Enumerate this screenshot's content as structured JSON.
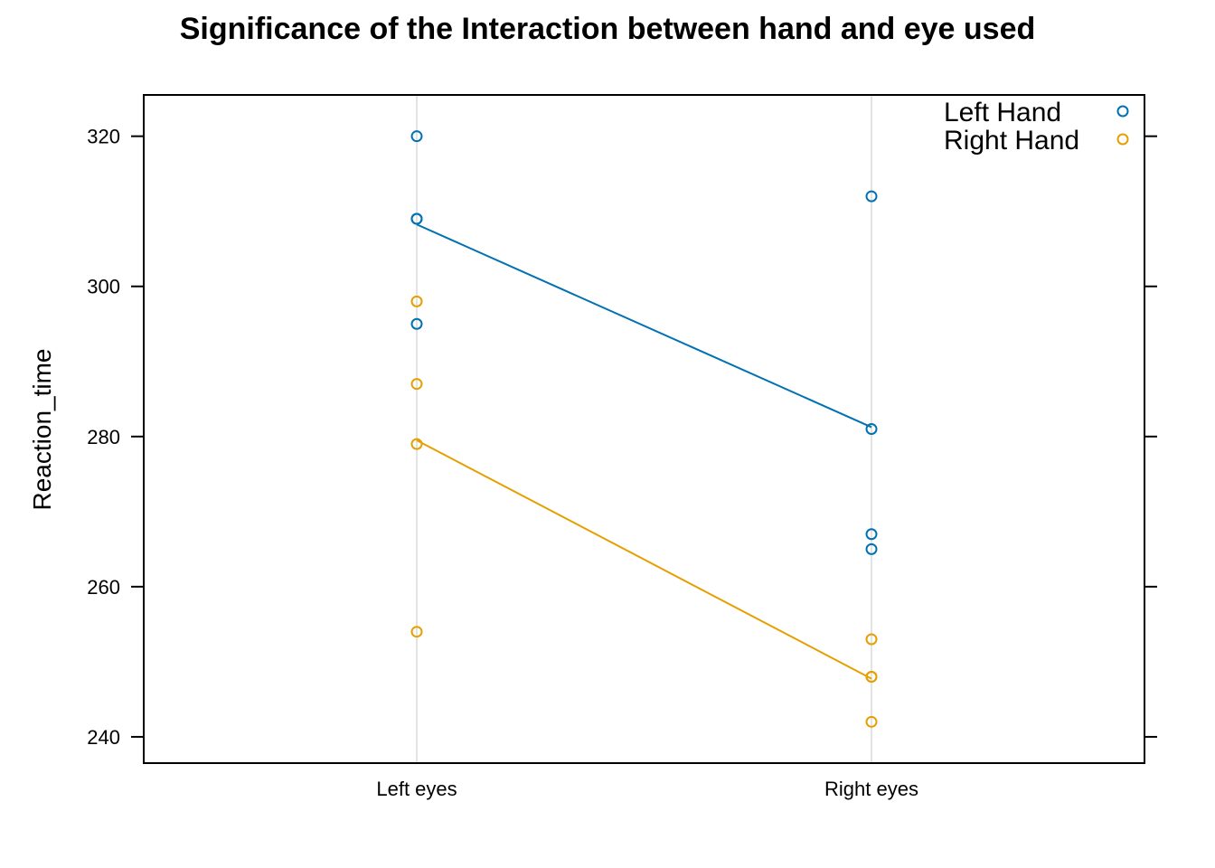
{
  "chart_data": {
    "type": "scatter",
    "title": "Significance of the Interaction between hand and eye used",
    "xlabel": "",
    "ylabel": "Reaction_time",
    "categories": [
      "Left eyes",
      "Right eyes"
    ],
    "ylim": [
      236.5,
      325.5
    ],
    "yticks": [
      240,
      260,
      280,
      300,
      320
    ],
    "grid": "vertical lines at categories",
    "legend_position": "top-right",
    "series": [
      {
        "name": "Left Hand",
        "color": "#0072B2",
        "points": [
          {
            "x": "Left eyes",
            "y": 320
          },
          {
            "x": "Left eyes",
            "y": 309
          },
          {
            "x": "Left eyes",
            "y": 309
          },
          {
            "x": "Left eyes",
            "y": 295
          },
          {
            "x": "Right eyes",
            "y": 312
          },
          {
            "x": "Right eyes",
            "y": 267
          },
          {
            "x": "Right eyes",
            "y": 265
          },
          {
            "x": "Right eyes",
            "y": 281
          }
        ],
        "means": [
          308.25,
          281.25
        ]
      },
      {
        "name": "Right Hand",
        "color": "#E69F00",
        "points": [
          {
            "x": "Left eyes",
            "y": 298
          },
          {
            "x": "Left eyes",
            "y": 287
          },
          {
            "x": "Left eyes",
            "y": 254
          },
          {
            "x": "Left eyes",
            "y": 279
          },
          {
            "x": "Right eyes",
            "y": 253
          },
          {
            "x": "Right eyes",
            "y": 248
          },
          {
            "x": "Right eyes",
            "y": 248
          },
          {
            "x": "Right eyes",
            "y": 242
          }
        ],
        "means": [
          279.5,
          247.75
        ]
      }
    ]
  }
}
